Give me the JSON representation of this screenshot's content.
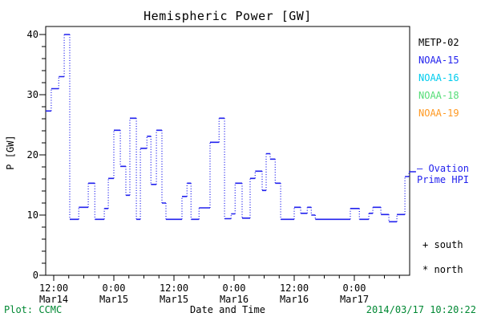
{
  "window": {
    "description": "Hemispheric power plot produced by CCMC"
  },
  "chart_data": {
    "type": "line",
    "step": true,
    "title": "Hemispheric Power [GW]",
    "xlabel": "Date and Time",
    "ylabel": "P [GW]",
    "ylim": [
      0,
      40
    ],
    "y_major_ticks": [
      0,
      10,
      20,
      30,
      40
    ],
    "y_minor_step": 2,
    "x_unit": "hours since 2014-03-14 00:00 UT",
    "xlim_hours": [
      10.4,
      83.04
    ],
    "x_minor_step_hours": 3,
    "x_major_ticks": [
      {
        "hours": 12,
        "time": "12:00",
        "date": "Mar14"
      },
      {
        "hours": 24,
        "time": "0:00",
        "date": "Mar15"
      },
      {
        "hours": 36,
        "time": "12:00",
        "date": "Mar15"
      },
      {
        "hours": 48,
        "time": "0:00",
        "date": "Mar16"
      },
      {
        "hours": 60,
        "time": "12:00",
        "date": "Mar16"
      },
      {
        "hours": 72,
        "time": "0:00",
        "date": "Mar17"
      }
    ],
    "grid": false,
    "legend_position": "right-outside",
    "series": [
      {
        "name": "Ovation Prime HPI",
        "color": "#2222ee",
        "style": "step; horizontal segments solid, vertical transitions dotted",
        "end_hours": 84.3,
        "points": [
          [
            10.4,
            27.3
          ],
          [
            11.5,
            31.0
          ],
          [
            13.0,
            33.0
          ],
          [
            14.1,
            40.0
          ],
          [
            15.2,
            9.3
          ],
          [
            17.0,
            11.3
          ],
          [
            18.9,
            15.3
          ],
          [
            20.2,
            9.3
          ],
          [
            22.1,
            11.1
          ],
          [
            22.9,
            16.1
          ],
          [
            24.0,
            24.1
          ],
          [
            25.3,
            18.1
          ],
          [
            26.4,
            13.3
          ],
          [
            27.2,
            26.1
          ],
          [
            28.5,
            9.3
          ],
          [
            29.3,
            21.1
          ],
          [
            30.6,
            23.1
          ],
          [
            31.4,
            15.1
          ],
          [
            32.5,
            24.1
          ],
          [
            33.6,
            12.0
          ],
          [
            34.4,
            9.3
          ],
          [
            37.6,
            13.1
          ],
          [
            38.6,
            15.3
          ],
          [
            39.4,
            9.3
          ],
          [
            41.0,
            11.2
          ],
          [
            43.2,
            22.1
          ],
          [
            45.0,
            26.1
          ],
          [
            46.1,
            9.4
          ],
          [
            47.4,
            10.2
          ],
          [
            48.2,
            15.3
          ],
          [
            49.6,
            9.5
          ],
          [
            51.2,
            16.1
          ],
          [
            52.2,
            17.3
          ],
          [
            53.6,
            14.1
          ],
          [
            54.4,
            20.2
          ],
          [
            55.2,
            19.3
          ],
          [
            56.2,
            15.3
          ],
          [
            57.3,
            9.3
          ],
          [
            60.0,
            11.3
          ],
          [
            61.3,
            10.3
          ],
          [
            62.6,
            11.3
          ],
          [
            63.4,
            10.0
          ],
          [
            64.2,
            9.3
          ],
          [
            71.2,
            11.1
          ],
          [
            73.0,
            9.3
          ],
          [
            74.9,
            10.3
          ],
          [
            75.7,
            11.3
          ],
          [
            77.3,
            10.1
          ],
          [
            78.9,
            8.9
          ],
          [
            80.5,
            10.1
          ],
          [
            82.1,
            16.4
          ],
          [
            82.9,
            17.2
          ]
        ]
      }
    ]
  },
  "legend": {
    "satellites": [
      {
        "label": "METP-02",
        "color": "#000000"
      },
      {
        "label": "NOAA-15",
        "color": "#2222ee"
      },
      {
        "label": "NOAA-16",
        "color": "#00ccee"
      },
      {
        "label": "NOAA-18",
        "color": "#55dd77"
      },
      {
        "label": "NOAA-19",
        "color": "#ff9922"
      }
    ],
    "ovation": {
      "line1": "– Ovation",
      "line2": "Prime HPI",
      "color": "#2222ee"
    },
    "markers": [
      {
        "symbol": "+",
        "label": "south"
      },
      {
        "symbol": "*",
        "label": "north"
      }
    ]
  },
  "footer": {
    "left": "Plot: CCMC",
    "right": "2014/03/17 10:20:22",
    "green": "#008833"
  },
  "colors": {
    "axis": "#000000",
    "background": "#ffffff",
    "line": "#2222ee"
  }
}
